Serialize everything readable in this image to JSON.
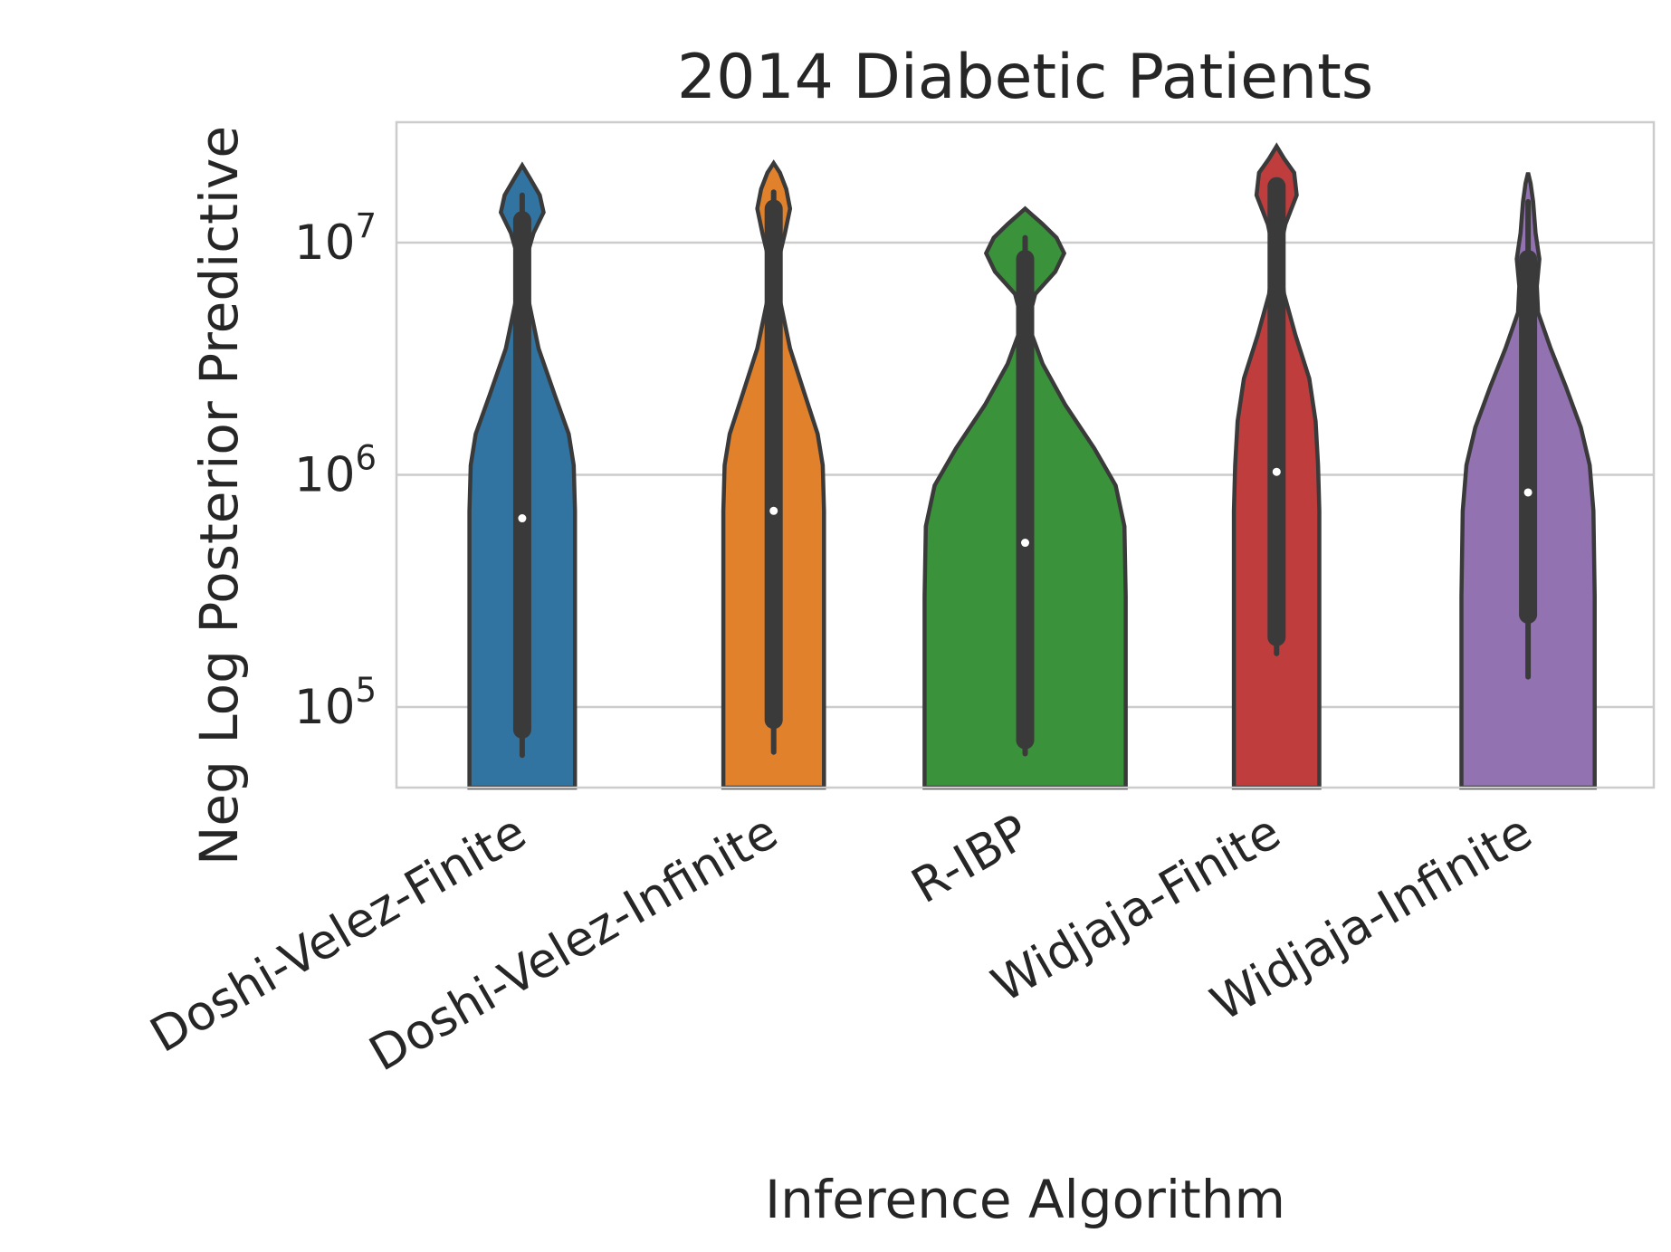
{
  "chart_data": {
    "type": "violin",
    "title": "2014 Diabetic Patients",
    "xlabel": "Inference Algorithm",
    "ylabel": "Neg Log Posterior Predictive",
    "yscale": "log",
    "ylim": [
      45000,
      33000000
    ],
    "yticks": [
      {
        "value": 100000,
        "base": "10",
        "exp": "5"
      },
      {
        "value": 1000000,
        "base": "10",
        "exp": "6"
      },
      {
        "value": 10000000,
        "base": "10",
        "exp": "7"
      }
    ],
    "grid": "horizontal",
    "categories": [
      "Doshi-Velez-Finite",
      "Doshi-Velez-Infinite",
      "R-IBP",
      "Widjaja-Finite",
      "Widjaja-Infinite"
    ],
    "series": [
      {
        "category": "Doshi-Velez-Finite",
        "color": "#3274a1",
        "median": 650000,
        "q1": 80000,
        "q3": 12500000,
        "whisker_low": 62000,
        "whisker_high": 16000000,
        "density": [
          {
            "y": 45000,
            "w": 0.42
          },
          {
            "y": 100000,
            "w": 0.42
          },
          {
            "y": 300000,
            "w": 0.42
          },
          {
            "y": 700000,
            "w": 0.42
          },
          {
            "y": 1100000,
            "w": 0.41
          },
          {
            "y": 1500000,
            "w": 0.37
          },
          {
            "y": 2200000,
            "w": 0.26
          },
          {
            "y": 3500000,
            "w": 0.13
          },
          {
            "y": 6000000,
            "w": 0.04
          },
          {
            "y": 8500000,
            "w": 0.03
          },
          {
            "y": 11000000,
            "w": 0.09
          },
          {
            "y": 13500000,
            "w": 0.17
          },
          {
            "y": 16000000,
            "w": 0.14
          },
          {
            "y": 19000000,
            "w": 0.06
          },
          {
            "y": 21500000,
            "w": 0.0
          }
        ]
      },
      {
        "category": "Doshi-Velez-Infinite",
        "color": "#e1812c",
        "median": 700000,
        "q1": 88000,
        "q3": 14000000,
        "whisker_low": 64000,
        "whisker_high": 16500000,
        "density": [
          {
            "y": 45000,
            "w": 0.4
          },
          {
            "y": 100000,
            "w": 0.4
          },
          {
            "y": 300000,
            "w": 0.4
          },
          {
            "y": 700000,
            "w": 0.4
          },
          {
            "y": 1100000,
            "w": 0.39
          },
          {
            "y": 1500000,
            "w": 0.35
          },
          {
            "y": 2200000,
            "w": 0.25
          },
          {
            "y": 3500000,
            "w": 0.13
          },
          {
            "y": 6000000,
            "w": 0.04
          },
          {
            "y": 8500000,
            "w": 0.04
          },
          {
            "y": 11000000,
            "w": 0.09
          },
          {
            "y": 14000000,
            "w": 0.13
          },
          {
            "y": 17000000,
            "w": 0.1
          },
          {
            "y": 20000000,
            "w": 0.05
          },
          {
            "y": 22000000,
            "w": 0.0
          }
        ]
      },
      {
        "category": "R-IBP",
        "color": "#3a923a",
        "median": 510000,
        "q1": 72000,
        "q3": 8500000,
        "whisker_low": 63000,
        "whisker_high": 10500000,
        "density": [
          {
            "y": 45000,
            "w": 0.8
          },
          {
            "y": 100000,
            "w": 0.8
          },
          {
            "y": 300000,
            "w": 0.8
          },
          {
            "y": 600000,
            "w": 0.79
          },
          {
            "y": 900000,
            "w": 0.72
          },
          {
            "y": 1300000,
            "w": 0.55
          },
          {
            "y": 2000000,
            "w": 0.32
          },
          {
            "y": 3000000,
            "w": 0.14
          },
          {
            "y": 4500000,
            "w": 0.02
          },
          {
            "y": 6000000,
            "w": 0.08
          },
          {
            "y": 7500000,
            "w": 0.24
          },
          {
            "y": 9000000,
            "w": 0.31
          },
          {
            "y": 10500000,
            "w": 0.25
          },
          {
            "y": 12000000,
            "w": 0.14
          },
          {
            "y": 14000000,
            "w": 0.0
          }
        ]
      },
      {
        "category": "Widjaja-Finite",
        "color": "#c03d3e",
        "median": 1030000,
        "q1": 200000,
        "q3": 17500000,
        "whisker_low": 170000,
        "whisker_high": 18500000,
        "density": [
          {
            "y": 45000,
            "w": 0.34
          },
          {
            "y": 100000,
            "w": 0.34
          },
          {
            "y": 300000,
            "w": 0.34
          },
          {
            "y": 700000,
            "w": 0.34
          },
          {
            "y": 1100000,
            "w": 0.33
          },
          {
            "y": 1700000,
            "w": 0.31
          },
          {
            "y": 2600000,
            "w": 0.26
          },
          {
            "y": 4000000,
            "w": 0.15
          },
          {
            "y": 6000000,
            "w": 0.06
          },
          {
            "y": 9000000,
            "w": 0.02
          },
          {
            "y": 12000000,
            "w": 0.07
          },
          {
            "y": 16000000,
            "w": 0.16
          },
          {
            "y": 20000000,
            "w": 0.14
          },
          {
            "y": 23000000,
            "w": 0.06
          },
          {
            "y": 26000000,
            "w": 0.0
          }
        ]
      },
      {
        "category": "Widjaja-Infinite",
        "color": "#9372b2",
        "median": 840000,
        "q1": 250000,
        "q3": 8500000,
        "whisker_low": 135000,
        "whisker_high": 15000000,
        "density": [
          {
            "y": 45000,
            "w": 0.53
          },
          {
            "y": 100000,
            "w": 0.53
          },
          {
            "y": 300000,
            "w": 0.53
          },
          {
            "y": 700000,
            "w": 0.52
          },
          {
            "y": 1100000,
            "w": 0.49
          },
          {
            "y": 1600000,
            "w": 0.42
          },
          {
            "y": 2400000,
            "w": 0.3
          },
          {
            "y": 3500000,
            "w": 0.18
          },
          {
            "y": 5000000,
            "w": 0.08
          },
          {
            "y": 6500000,
            "w": 0.07
          },
          {
            "y": 8500000,
            "w": 0.09
          },
          {
            "y": 11000000,
            "w": 0.06
          },
          {
            "y": 15000000,
            "w": 0.04
          },
          {
            "y": 18000000,
            "w": 0.02
          },
          {
            "y": 20000000,
            "w": 0.0
          }
        ]
      }
    ]
  }
}
